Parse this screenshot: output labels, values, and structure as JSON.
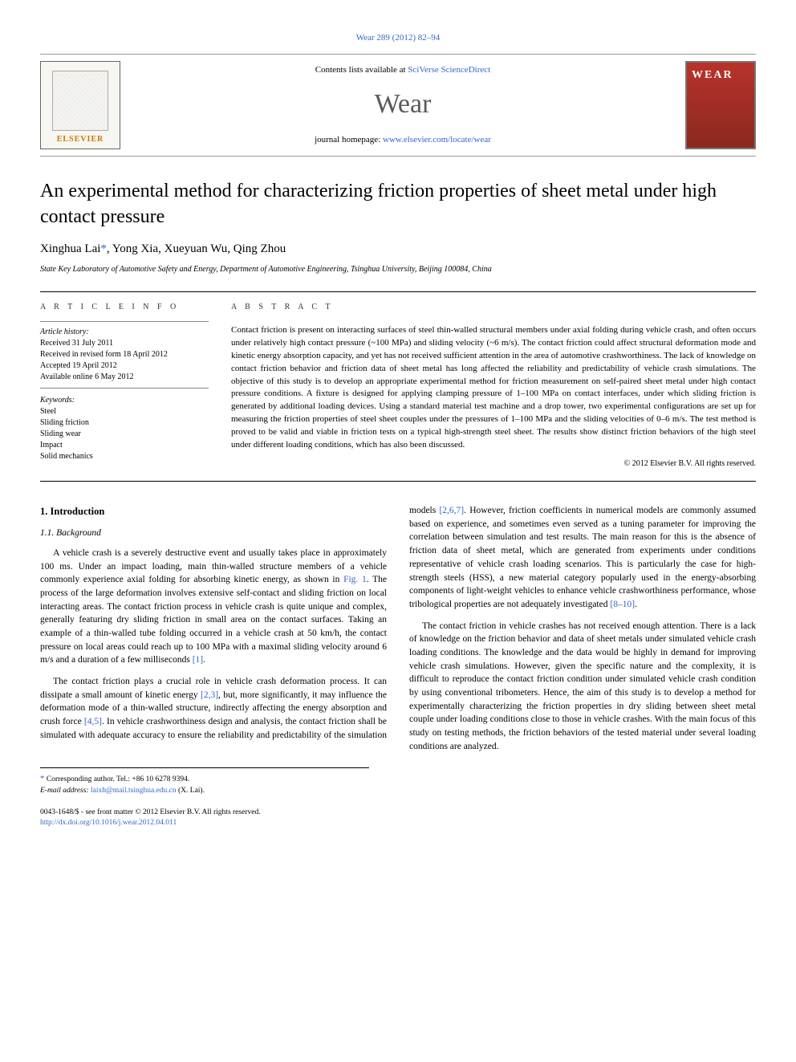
{
  "journal": {
    "header_ref": "Wear 289 (2012) 82–94",
    "contents_prefix": "Contents lists available at ",
    "contents_link": "SciVerse ScienceDirect",
    "name": "Wear",
    "homepage_prefix": "journal homepage: ",
    "homepage_link": "www.elsevier.com/locate/wear",
    "publisher_logo_text": "ELSEVIER",
    "cover_text": "WEAR"
  },
  "article": {
    "title": "An experimental method for characterizing friction properties of sheet metal under high contact pressure",
    "authors": [
      {
        "name": "Xinghua Lai",
        "corresponding": true
      },
      {
        "name": "Yong Xia",
        "corresponding": false
      },
      {
        "name": "Xueyuan Wu",
        "corresponding": false
      },
      {
        "name": "Qing Zhou",
        "corresponding": false
      }
    ],
    "affiliation": "State Key Laboratory of Automotive Safety and Energy, Department of Automotive Engineering, Tsinghua University, Beijing 100084, China"
  },
  "info": {
    "header": "A R T I C L E  I N F O",
    "history_label": "Article history:",
    "received": "Received 31 July 2011",
    "revised": "Received in revised form 18 April 2012",
    "accepted": "Accepted 19 April 2012",
    "online": "Available online 6 May 2012",
    "keywords_label": "Keywords:",
    "keywords": [
      "Steel",
      "Sliding friction",
      "Sliding wear",
      "Impact",
      "Solid mechanics"
    ]
  },
  "abstract": {
    "header": "A B S T R A C T",
    "text": "Contact friction is present on interacting surfaces of steel thin-walled structural members under axial folding during vehicle crash, and often occurs under relatively high contact pressure (~100 MPa) and sliding velocity (~6 m/s). The contact friction could affect structural deformation mode and kinetic energy absorption capacity, and yet has not received sufficient attention in the area of automotive crashworthiness. The lack of knowledge on contact friction behavior and friction data of sheet metal has long affected the reliability and predictability of vehicle crash simulations. The objective of this study is to develop an appropriate experimental method for friction measurement on self-paired sheet metal under high contact pressure conditions. A fixture is designed for applying clamping pressure of 1–100 MPa on contact interfaces, under which sliding friction is generated by additional loading devices. Using a standard material test machine and a drop tower, two experimental configurations are set up for measuring the friction properties of steel sheet couples under the pressures of 1–100 MPa and the sliding velocities of 0–6 m/s. The test method is proved to be valid and viable in friction tests on a typical high-strength steel sheet. The results show distinct friction behaviors of the high steel under different loading conditions, which has also been discussed.",
    "copyright": "© 2012 Elsevier B.V. All rights reserved."
  },
  "body": {
    "sec1": "1.  Introduction",
    "sec11": "1.1.  Background",
    "p1a": "A vehicle crash is a severely destructive event and usually takes place in approximately 100 ms. Under an impact loading, main thin-walled structure members of a vehicle commonly experience axial folding for absorbing kinetic energy, as shown in ",
    "p1_fig": "Fig. 1",
    "p1b": ". The process of the large deformation involves extensive self-contact and sliding friction on local interacting areas. The contact friction process in vehicle crash is quite unique and complex, generally featuring dry sliding friction in small area on the contact surfaces. Taking an example of a thin-walled tube folding occurred in a vehicle crash at 50 km/h, the contact pressure on local areas could reach up to 100 MPa with a maximal sliding velocity around 6 m/s and a duration of a few milliseconds ",
    "p1_ref1": "[1]",
    "p1c": ".",
    "p2a": "The contact friction plays a crucial role in vehicle crash deformation process. It can dissipate a small amount of kinetic energy ",
    "p2_ref1": "[2,3]",
    "p2b": ", but, more significantly, it may influence the deformation mode of a thin-walled structure, indirectly affecting the energy absorption and crush force ",
    "p2_ref2": "[4,5]",
    "p2c": ". In vehicle crashworthiness design and analysis, the contact friction shall be simulated ",
    "p3a": "with adequate accuracy to ensure the reliability and predictability of the simulation models ",
    "p3_ref1": "[2,6,7]",
    "p3b": ". However, friction coefficients in numerical models are commonly assumed based on experience, and sometimes even served as a tuning parameter for improving the correlation between simulation and test results. The main reason for this is the absence of friction data of sheet metal, which are generated from experiments under conditions representative of vehicle crash loading scenarios. This is particularly the case for high-strength steels (HSS), a new material category popularly used in the energy-absorbing components of light-weight vehicles to enhance vehicle crashworthiness performance, whose tribological properties are not adequately investigated ",
    "p3_ref2": "[8–10]",
    "p3c": ".",
    "p4": "The contact friction in vehicle crashes has not received enough attention. There is a lack of knowledge on the friction behavior and data of sheet metals under simulated vehicle crash loading conditions. The knowledge and the data would be highly in demand for improving vehicle crash simulations. However, given the specific nature and the complexity, it is difficult to reproduce the contact friction condition under simulated vehicle crash condition by using conventional tribometers. Hence, the aim of this study is to develop a method for experimentally characterizing the friction properties in dry sliding between sheet metal couple under loading conditions close to those in vehicle crashes. With the main focus of this study on testing methods, the friction behaviors of the tested material under several loading conditions are analyzed."
  },
  "footnote": {
    "corr_label": "Corresponding author. Tel.: +86 10 6278 9394.",
    "email_label": "E-mail address:",
    "email": "laixh@mail.tsinghua.edu.cn",
    "email_author": " (X. Lai)."
  },
  "footer": {
    "issn": "0043-1648/$ - see front matter © 2012 Elsevier B.V. All rights reserved.",
    "doi": "http://dx.doi.org/10.1016/j.wear.2012.04.011"
  },
  "colors": {
    "link": "#3366cc",
    "text": "#000000",
    "logo_orange": "#cc7700",
    "cover_red": "#b8332a"
  }
}
